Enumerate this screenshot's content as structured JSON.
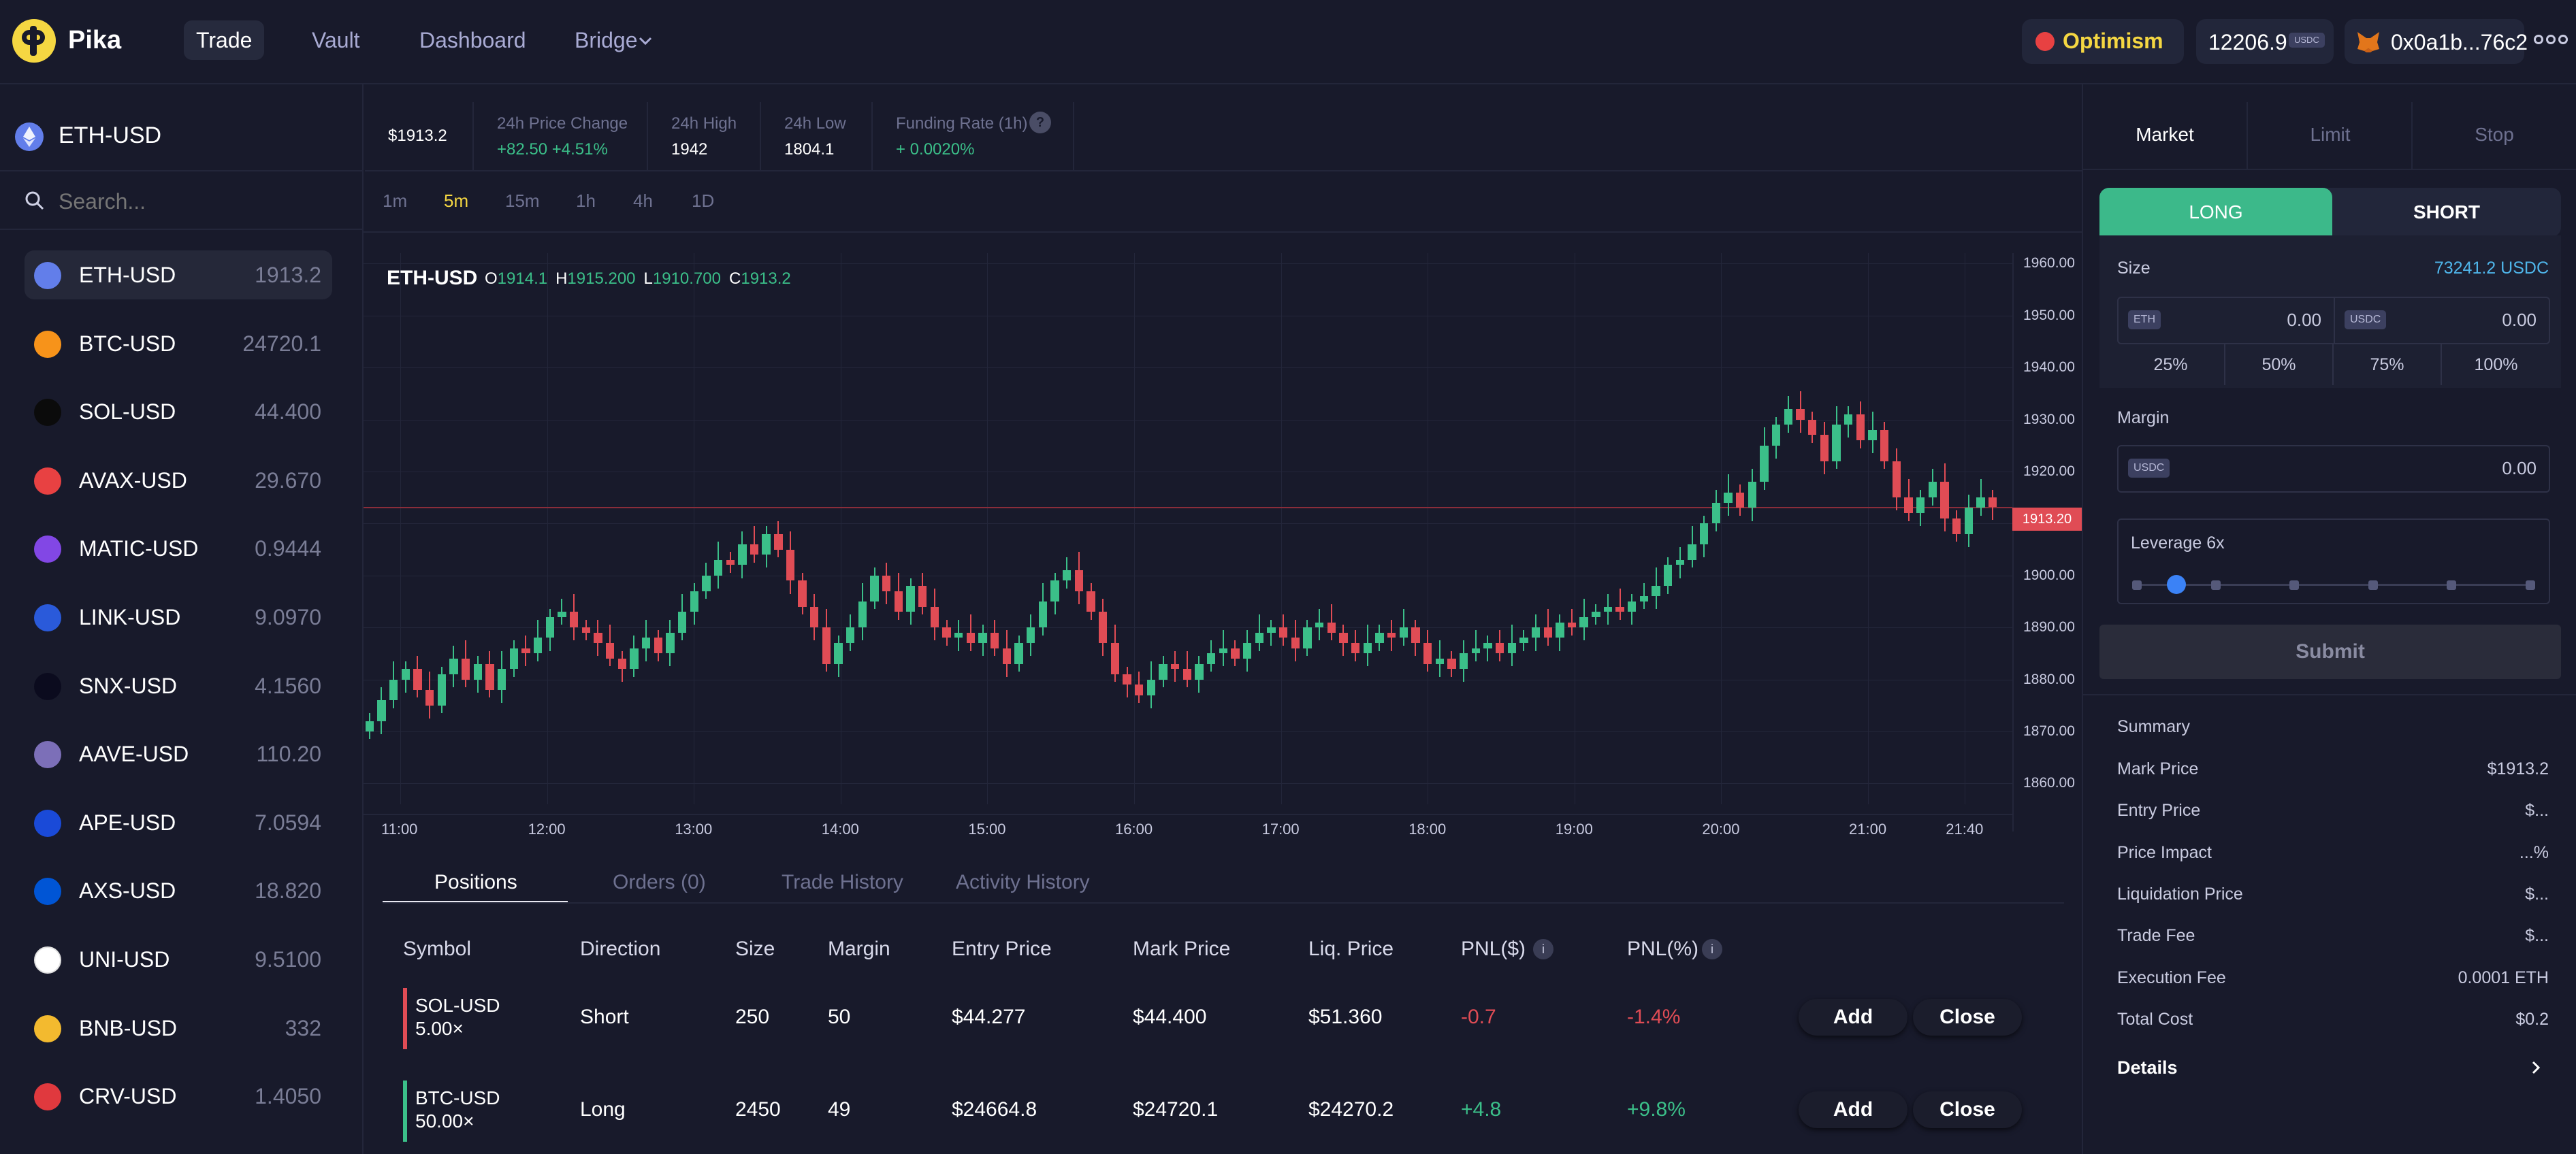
{
  "nav": {
    "brand": "Pika",
    "items": [
      "Trade",
      "Vault",
      "Dashboard",
      "Bridge"
    ],
    "network": "Optimism",
    "balance": "12206.9",
    "balance_unit": "USDC",
    "wallet": "0x0a1b...76c2"
  },
  "pair": {
    "selected": "ETH-USD",
    "search_placeholder": "Search..."
  },
  "markets": [
    {
      "name": "ETH-USD",
      "price": "1913.2",
      "color": "#627eea"
    },
    {
      "name": "BTC-USD",
      "price": "24720.1",
      "color": "#f7931a"
    },
    {
      "name": "SOL-USD",
      "price": "44.400",
      "color": "#0b0b0b"
    },
    {
      "name": "AVAX-USD",
      "price": "29.670",
      "color": "#e84142"
    },
    {
      "name": "MATIC-USD",
      "price": "0.9444",
      "color": "#8247e5"
    },
    {
      "name": "LINK-USD",
      "price": "9.0970",
      "color": "#2a5ada"
    },
    {
      "name": "SNX-USD",
      "price": "4.1560",
      "color": "#0b0b1e"
    },
    {
      "name": "AAVE-USD",
      "price": "110.20",
      "color": "#7c6fb8"
    },
    {
      "name": "APE-USD",
      "price": "7.0594",
      "color": "#1a4ad8"
    },
    {
      "name": "AXS-USD",
      "price": "18.820",
      "color": "#0055d5"
    },
    {
      "name": "UNI-USD",
      "price": "9.5100",
      "color": "#ffffff"
    },
    {
      "name": "BNB-USD",
      "price": "332",
      "color": "#f3ba2f"
    },
    {
      "name": "CRV-USD",
      "price": "1.4050",
      "color": "#e0393e"
    }
  ],
  "stats": {
    "price": "$1913.2",
    "change_label": "24h Price Change",
    "change_value": "+82.50 +4.51%",
    "high_label": "24h High",
    "high_value": "1942",
    "low_label": "24h Low",
    "low_value": "1804.1",
    "funding_label": "Funding Rate (1h)",
    "funding_value": "+ 0.0020%",
    "funding_help": "?"
  },
  "timeframes": [
    "1m",
    "5m",
    "15m",
    "1h",
    "4h",
    "1D"
  ],
  "chart_header": {
    "symbol": "ETH-USD",
    "o_label": "O",
    "o": "1914.1",
    "h_label": "H",
    "h": "1915.200",
    "l_label": "L",
    "l": "1910.700",
    "c_label": "C",
    "c": "1913.2"
  },
  "chart_data": {
    "type": "candlestick",
    "x_ticks": [
      "11:00",
      "12:00",
      "13:00",
      "14:00",
      "15:00",
      "16:00",
      "17:00",
      "18:00",
      "19:00",
      "20:00",
      "21:00",
      "21:40"
    ],
    "y_ticks": [
      "1960.00",
      "1950.00",
      "1940.00",
      "1930.00",
      "1920.00",
      "1910.00",
      "1900.00",
      "1890.00",
      "1880.00",
      "1870.00",
      "1860.00"
    ],
    "ylim": [
      1856,
      1962
    ],
    "last_price": "1913.20",
    "closes": [
      1872,
      1876,
      1880,
      1882,
      1878,
      1875,
      1881,
      1884,
      1880,
      1883,
      1878,
      1882,
      1886,
      1885,
      1888,
      1892,
      1893,
      1890,
      1889,
      1887,
      1884,
      1882,
      1886,
      1888,
      1885,
      1889,
      1893,
      1897,
      1900,
      1903,
      1902,
      1906,
      1904,
      1908,
      1905,
      1899,
      1894,
      1890,
      1883,
      1887,
      1890,
      1895,
      1900,
      1897,
      1893,
      1898,
      1894,
      1890,
      1888,
      1889,
      1887,
      1889,
      1886,
      1883,
      1887,
      1890,
      1895,
      1899,
      1901,
      1897,
      1893,
      1887,
      1881,
      1879,
      1877,
      1880,
      1883,
      1882,
      1880,
      1883,
      1885,
      1886,
      1884,
      1887,
      1889,
      1890,
      1888,
      1886,
      1890,
      1891,
      1889,
      1887,
      1885,
      1887,
      1889,
      1888,
      1890,
      1887,
      1883,
      1884,
      1882,
      1885,
      1886,
      1887,
      1885,
      1887,
      1888,
      1890,
      1888,
      1891,
      1890,
      1892,
      1893,
      1894,
      1893,
      1895,
      1896,
      1898,
      1902,
      1903,
      1906,
      1910,
      1914,
      1916,
      1913,
      1918,
      1925,
      1929,
      1932,
      1930,
      1927,
      1922,
      1929,
      1931,
      1926,
      1928,
      1922,
      1915,
      1912,
      1915,
      1918,
      1911,
      1908,
      1913,
      1915,
      1913.2
    ]
  },
  "tabs": [
    "Positions",
    "Orders (0)",
    "Trade History",
    "Activity History"
  ],
  "positions": {
    "headers": [
      "Symbol",
      "Direction",
      "Size",
      "Margin",
      "Entry Price",
      "Mark Price",
      "Liq. Price",
      "PNL($)",
      "PNL(%)"
    ],
    "info_icon": "i",
    "rows": [
      {
        "symbol": "SOL-USD",
        "leverage": "5.00×",
        "direction": "Short",
        "size": "250",
        "margin": "50",
        "entry": "$44.277",
        "mark": "$44.400",
        "liq": "$51.360",
        "pnl": "-0.7",
        "pnl_pct": "-1.4%",
        "color": "#e04c55"
      },
      {
        "symbol": "BTC-USD",
        "leverage": "50.00×",
        "direction": "Long",
        "size": "2450",
        "margin": "49",
        "entry": "$24664.8",
        "mark": "$24720.1",
        "liq": "$24270.2",
        "pnl": "+4.8",
        "pnl_pct": "+9.8%",
        "color": "#3bbf89"
      }
    ],
    "add_label": "Add",
    "close_label": "Close"
  },
  "order": {
    "types": [
      "Market",
      "Limit",
      "Stop"
    ],
    "long": "LONG",
    "short": "SHORT",
    "size_label": "Size",
    "size_max": "73241.2 USDC",
    "eth_badge": "ETH",
    "usdc_badge": "USDC",
    "eth_value": "0.00",
    "usdc_value": "0.00",
    "pcts": [
      "25%",
      "50%",
      "75%",
      "100%"
    ],
    "margin_label": "Margin",
    "margin_value": "0.00",
    "leverage_label": "Leverage 6x",
    "leverage_level": 0.1,
    "submit": "Submit"
  },
  "summary": {
    "title": "Summary",
    "rows": [
      {
        "label": "Mark Price",
        "value": "$1913.2"
      },
      {
        "label": "Entry Price",
        "value": "$..."
      },
      {
        "label": "Price Impact",
        "value": "...%"
      },
      {
        "label": "Liquidation Price",
        "value": "$..."
      },
      {
        "label": "Trade Fee",
        "value": "$..."
      },
      {
        "label": "Execution Fee",
        "value": "0.0001 ETH"
      },
      {
        "label": "Total Cost",
        "value": "$0.2"
      }
    ],
    "details": "Details"
  },
  "colors": {
    "up": "#3bbf89",
    "down": "#e04c55",
    "accent": "#f5d742",
    "long_bg": "#3cb98a"
  }
}
